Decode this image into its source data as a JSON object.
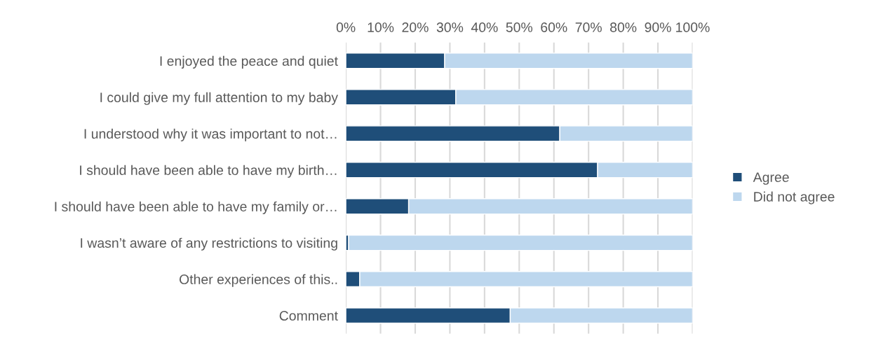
{
  "chart_data": {
    "type": "bar",
    "orientation": "horizontal",
    "stacked": true,
    "categories": [
      "I enjoyed the peace and quiet",
      "I could give my full attention to my baby",
      "I understood why it was important to not…",
      "I should have been able to have my birth…",
      "I should have been able to have my family or…",
      "I wasn’t aware of any restrictions to visiting",
      "Other experiences of this..",
      "Comment"
    ],
    "series": [
      {
        "name": "Agree",
        "color": "#1f4e79",
        "values": [
          28.5,
          31.7,
          61.7,
          72.6,
          18.1,
          0.8,
          4.0,
          47.4
        ]
      },
      {
        "name": "Did not agree",
        "color": "#bdd7ee",
        "values": [
          71.5,
          68.3,
          38.3,
          27.4,
          81.9,
          99.2,
          96.0,
          52.6
        ]
      }
    ],
    "xlim": [
      0,
      100
    ],
    "xticks": [
      {
        "value": 0,
        "label": "0%"
      },
      {
        "value": 10,
        "label": "10%"
      },
      {
        "value": 20,
        "label": "20%"
      },
      {
        "value": 30,
        "label": "30%"
      },
      {
        "value": 40,
        "label": "40%"
      },
      {
        "value": 50,
        "label": "50%"
      },
      {
        "value": 60,
        "label": "60%"
      },
      {
        "value": 70,
        "label": "70%"
      },
      {
        "value": 80,
        "label": "80%"
      },
      {
        "value": 90,
        "label": "90%"
      },
      {
        "value": 100,
        "label": "100%"
      }
    ],
    "grid": "x",
    "legend": "right"
  }
}
